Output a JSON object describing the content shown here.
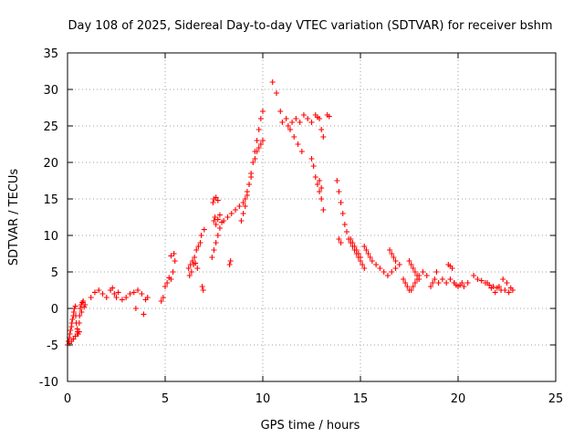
{
  "chart_data": {
    "type": "scatter",
    "title": "Day 108 of 2025, Sidereal Day-to-day VTEC variation (SDTVAR) for receiver bshm",
    "xlabel": "GPS time / hours",
    "ylabel": "SDTVAR / TECUs",
    "xlim": [
      0,
      25
    ],
    "ylim": [
      -10,
      35
    ],
    "xticks": [
      0,
      5,
      10,
      15,
      20,
      25
    ],
    "yticks": [
      -10,
      -5,
      0,
      5,
      10,
      15,
      20,
      25,
      30,
      35
    ],
    "grid": true,
    "marker": "+",
    "color": "#ff0000",
    "series": [
      {
        "name": "SDTVAR",
        "x": [
          0.0,
          0.05,
          0.1,
          0.12,
          0.15,
          0.2,
          0.22,
          0.25,
          0.3,
          0.32,
          0.35,
          0.4,
          0.42,
          0.45,
          0.5,
          0.52,
          0.55,
          0.6,
          0.62,
          0.65,
          0.7,
          0.72,
          0.75,
          0.8,
          0.85,
          0.9,
          0.1,
          0.2,
          0.3,
          0.4,
          0.5,
          0.6,
          1.2,
          1.4,
          1.6,
          1.8,
          2.0,
          2.2,
          2.3,
          2.4,
          2.5,
          2.6,
          2.8,
          3.0,
          3.2,
          3.4,
          3.6,
          3.8,
          3.5,
          3.9,
          4.0,
          4.1,
          4.8,
          4.9,
          5.0,
          5.1,
          5.2,
          5.3,
          5.4,
          5.5,
          5.45,
          5.3,
          6.2,
          6.3,
          6.4,
          6.5,
          6.6,
          6.7,
          6.8,
          6.25,
          6.35,
          6.45,
          6.55,
          6.65,
          6.9,
          6.95,
          6.85,
          7.0,
          7.4,
          7.5,
          7.6,
          7.7,
          7.8,
          7.5,
          7.55,
          7.6,
          7.7,
          7.8,
          7.9,
          7.45,
          7.5,
          7.6,
          7.7,
          8.0,
          8.2,
          8.4,
          8.6,
          8.8,
          8.3,
          8.35,
          8.9,
          9.0,
          9.1,
          9.2,
          9.3,
          9.4,
          9.5,
          9.6,
          9.7,
          9.8,
          9.9,
          10.0,
          9.0,
          9.1,
          9.2,
          9.3,
          9.4,
          9.6,
          9.7,
          9.8,
          9.9,
          10.0,
          10.5,
          10.7,
          10.9,
          11.0,
          11.2,
          11.4,
          11.6,
          11.8,
          12.0,
          11.3,
          11.5,
          11.7,
          11.9,
          12.1,
          12.3,
          12.5,
          12.7,
          12.8,
          12.9,
          13.0,
          13.1,
          13.3,
          13.4,
          12.5,
          12.6,
          12.7,
          12.8,
          12.9,
          13.0,
          12.9,
          13.0,
          13.1,
          13.8,
          13.9,
          14.0,
          14.1,
          14.2,
          14.3,
          14.4,
          14.5,
          14.6,
          14.7,
          14.8,
          14.9,
          15.0,
          15.1,
          15.2,
          13.9,
          14.0,
          14.5,
          14.6,
          14.7,
          14.8,
          14.9,
          15.0,
          15.2,
          15.3,
          15.4,
          15.5,
          15.6,
          15.8,
          16.0,
          16.2,
          16.4,
          16.6,
          16.8,
          17.0,
          16.5,
          16.6,
          16.7,
          16.8,
          17.2,
          17.3,
          17.4,
          17.5,
          17.6,
          17.7,
          17.8,
          17.9,
          18.0,
          18.2,
          18.4,
          17.5,
          17.6,
          17.7,
          17.8,
          17.9,
          18.0,
          18.6,
          18.7,
          18.8,
          18.9,
          19.0,
          19.2,
          19.4,
          19.6,
          19.8,
          19.5,
          19.6,
          19.7,
          19.8,
          19.9,
          20.0,
          20.1,
          20.2,
          20.3,
          20.5,
          20.8,
          21.0,
          21.2,
          21.4,
          21.6,
          21.8,
          22.0,
          22.2,
          22.4,
          22.6,
          22.8,
          21.5,
          21.7,
          21.9,
          22.1,
          22.3,
          22.5,
          22.7
        ],
        "y": [
          -5.0,
          -4.5,
          -4.0,
          -3.5,
          -3.0,
          -2.5,
          -2.0,
          -1.5,
          -1.0,
          -0.5,
          0.0,
          0.3,
          -1.0,
          -2.0,
          -2.8,
          -3.2,
          -3.5,
          -2.0,
          -1.0,
          0.0,
          0.5,
          -0.5,
          0.8,
          1.0,
          0.2,
          0.5,
          -4.8,
          -4.5,
          -4.2,
          -3.8,
          -3.5,
          -3.2,
          1.5,
          2.2,
          2.5,
          2.0,
          1.5,
          2.5,
          2.8,
          2.0,
          1.5,
          2.2,
          1.2,
          1.5,
          2.0,
          2.2,
          2.5,
          2.0,
          0.0,
          -0.8,
          1.2,
          1.5,
          1.0,
          1.5,
          3.0,
          3.5,
          4.2,
          4.0,
          5.0,
          6.5,
          7.5,
          7.2,
          5.5,
          6.0,
          6.5,
          7.0,
          8.0,
          8.5,
          9.0,
          4.5,
          5.0,
          6.0,
          6.2,
          5.5,
          3.0,
          2.5,
          10.0,
          10.8,
          7.0,
          8.0,
          9.0,
          10.0,
          11.0,
          12.0,
          12.5,
          11.5,
          12.2,
          12.8,
          11.8,
          14.5,
          15.0,
          15.2,
          14.8,
          12.0,
          12.5,
          13.0,
          13.5,
          14.0,
          6.0,
          6.5,
          12.0,
          13.0,
          14.0,
          15.5,
          17.0,
          18.5,
          20.0,
          21.5,
          23.0,
          24.5,
          26.0,
          27.0,
          14.5,
          15.0,
          16.0,
          17.0,
          18.0,
          20.5,
          21.5,
          22.0,
          22.5,
          23.0,
          31.0,
          29.5,
          27.0,
          25.5,
          26.0,
          24.5,
          23.5,
          22.5,
          21.5,
          25.0,
          25.5,
          26.0,
          25.5,
          26.5,
          26.0,
          25.5,
          26.5,
          26.2,
          26.0,
          24.5,
          23.5,
          26.5,
          26.3,
          20.5,
          19.5,
          18.0,
          17.0,
          16.0,
          15.0,
          17.5,
          16.5,
          13.5,
          17.5,
          16.0,
          14.5,
          13.0,
          11.5,
          10.5,
          9.5,
          9.0,
          8.5,
          8.0,
          7.5,
          7.0,
          6.5,
          6.0,
          5.5,
          9.5,
          9.0,
          9.5,
          9.0,
          8.5,
          8.0,
          7.5,
          7.0,
          8.5,
          8.0,
          7.5,
          7.0,
          6.5,
          6.0,
          5.5,
          5.0,
          4.5,
          5.0,
          5.5,
          6.0,
          8.0,
          7.5,
          7.0,
          6.5,
          4.0,
          3.5,
          3.0,
          2.5,
          2.5,
          3.0,
          3.5,
          4.0,
          4.5,
          5.0,
          4.5,
          6.5,
          6.0,
          5.5,
          5.0,
          4.5,
          4.0,
          3.0,
          3.5,
          4.0,
          5.0,
          3.5,
          4.0,
          3.5,
          4.0,
          3.5,
          6.0,
          5.8,
          5.5,
          3.5,
          3.2,
          3.0,
          3.2,
          3.5,
          3.0,
          3.5,
          4.5,
          4.0,
          3.8,
          3.5,
          3.2,
          3.0,
          2.8,
          2.5,
          2.5,
          2.2,
          2.5,
          3.5,
          2.8,
          2.2,
          3.0,
          4.0,
          3.5,
          2.8
        ]
      }
    ]
  }
}
